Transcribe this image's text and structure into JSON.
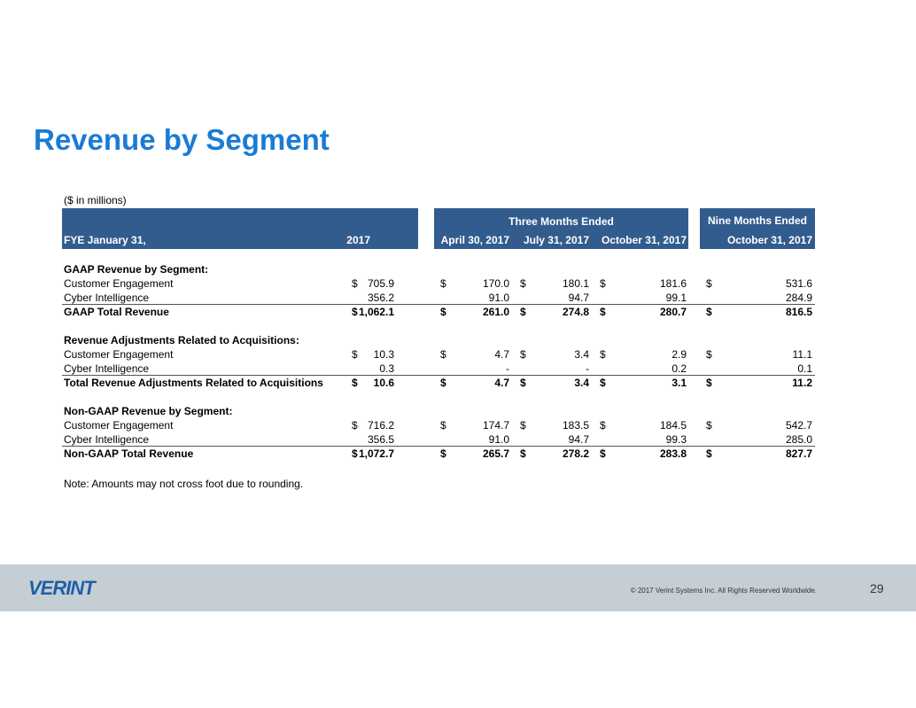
{
  "header": {
    "title": "Revenue by Segment"
  },
  "table": {
    "units": "($ in millions)",
    "groups": [
      "Three Months Ended",
      "Nine Months Ended"
    ],
    "columns": [
      "FYE January 31,",
      "2017",
      "April 30, 2017",
      "July 31, 2017",
      "October 31, 2017",
      "October 31, 2017"
    ],
    "sections": [
      {
        "heading": "GAAP Revenue by Segment:",
        "rows": [
          [
            "Customer Engagement",
            "$",
            "705.9",
            "$",
            "170.0",
            "$",
            "180.1",
            "$",
            "181.6",
            "$",
            "531.6"
          ],
          [
            "Cyber Intelligence",
            null,
            "356.2",
            null,
            "91.0",
            null,
            "94.7",
            null,
            "99.1",
            null,
            "284.9"
          ]
        ],
        "total": [
          "GAAP Total Revenue",
          "$",
          "1,062.1",
          "$",
          "261.0",
          "$",
          "274.8",
          "$",
          "280.7",
          "$",
          "816.5"
        ]
      },
      {
        "heading": "Revenue Adjustments Related to Acquisitions:",
        "rows": [
          [
            "Customer Engagement",
            "$",
            "10.3",
            "$",
            "4.7",
            "$",
            "3.4",
            "$",
            "2.9",
            "$",
            "11.1"
          ],
          [
            "Cyber Intelligence",
            null,
            "0.3",
            null,
            "-",
            null,
            "-",
            null,
            "0.2",
            null,
            "0.1"
          ]
        ],
        "total": [
          "Total Revenue Adjustments Related to Acquisitions",
          "$",
          "10.6",
          "$",
          "4.7",
          "$",
          "3.4",
          "$",
          "3.1",
          "$",
          "11.2"
        ]
      },
      {
        "heading": "Non-GAAP Revenue by Segment:",
        "rows": [
          [
            "Customer Engagement",
            "$",
            "716.2",
            "$",
            "174.7",
            "$",
            "183.5",
            "$",
            "184.5",
            "$",
            "542.7"
          ],
          [
            "Cyber Intelligence",
            null,
            "356.5",
            null,
            "91.0",
            null,
            "94.7",
            null,
            "99.3",
            null,
            "285.0"
          ]
        ],
        "total": [
          "Non-GAAP Total Revenue",
          "$",
          "1,072.7",
          "$",
          "265.7",
          "$",
          "278.2",
          "$",
          "283.8",
          "$",
          "827.7"
        ]
      }
    ],
    "note": "Note: Amounts may not cross foot due to rounding."
  },
  "footer": {
    "logo": "VERINT",
    "copyright": "© 2017 Verint Systems Inc. All Rights Reserved Worldwide.",
    "page": "29"
  }
}
